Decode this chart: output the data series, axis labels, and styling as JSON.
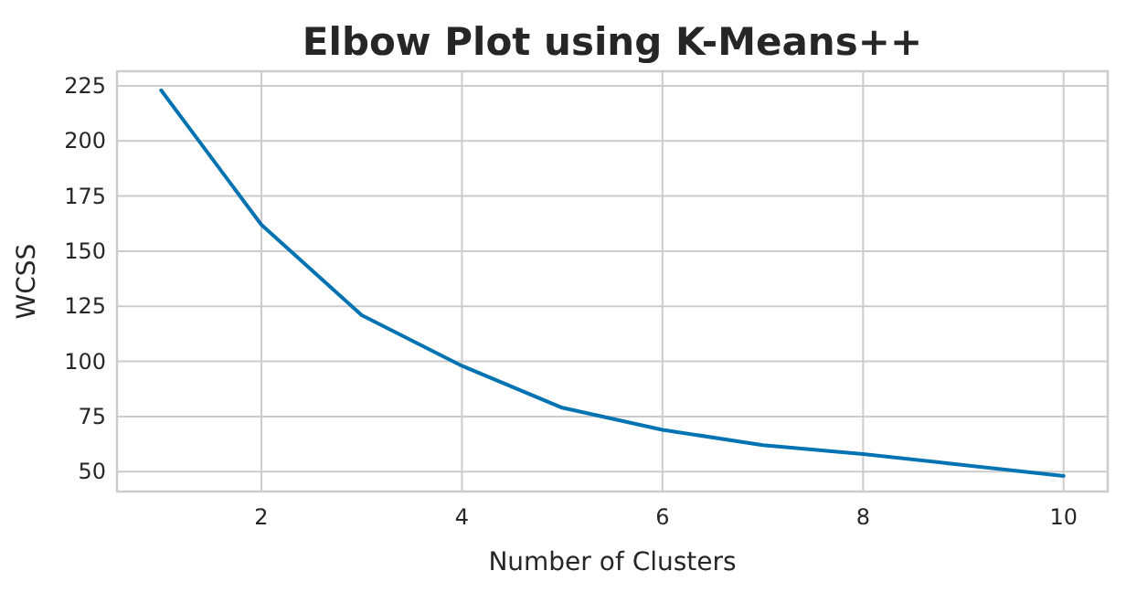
{
  "chart_data": {
    "type": "line",
    "title": "Elbow Plot using K-Means++",
    "xlabel": "Number of Clusters",
    "ylabel": "WCSS",
    "x": [
      1,
      2,
      3,
      4,
      5,
      6,
      7,
      8,
      9,
      10
    ],
    "series": [
      {
        "color": "#0173b2",
        "values": [
          223,
          162,
          121,
          98,
          79,
          69,
          62,
          58,
          53,
          48
        ]
      }
    ],
    "xlim": [
      0.56,
      10.44
    ],
    "xticks": [
      2,
      4,
      6,
      8,
      10
    ],
    "ylim": [
      41,
      231.6
    ],
    "yticks": [
      50,
      75,
      100,
      125,
      150,
      175,
      200,
      225
    ],
    "grid": true,
    "marker": "none",
    "line_style": "solid"
  }
}
